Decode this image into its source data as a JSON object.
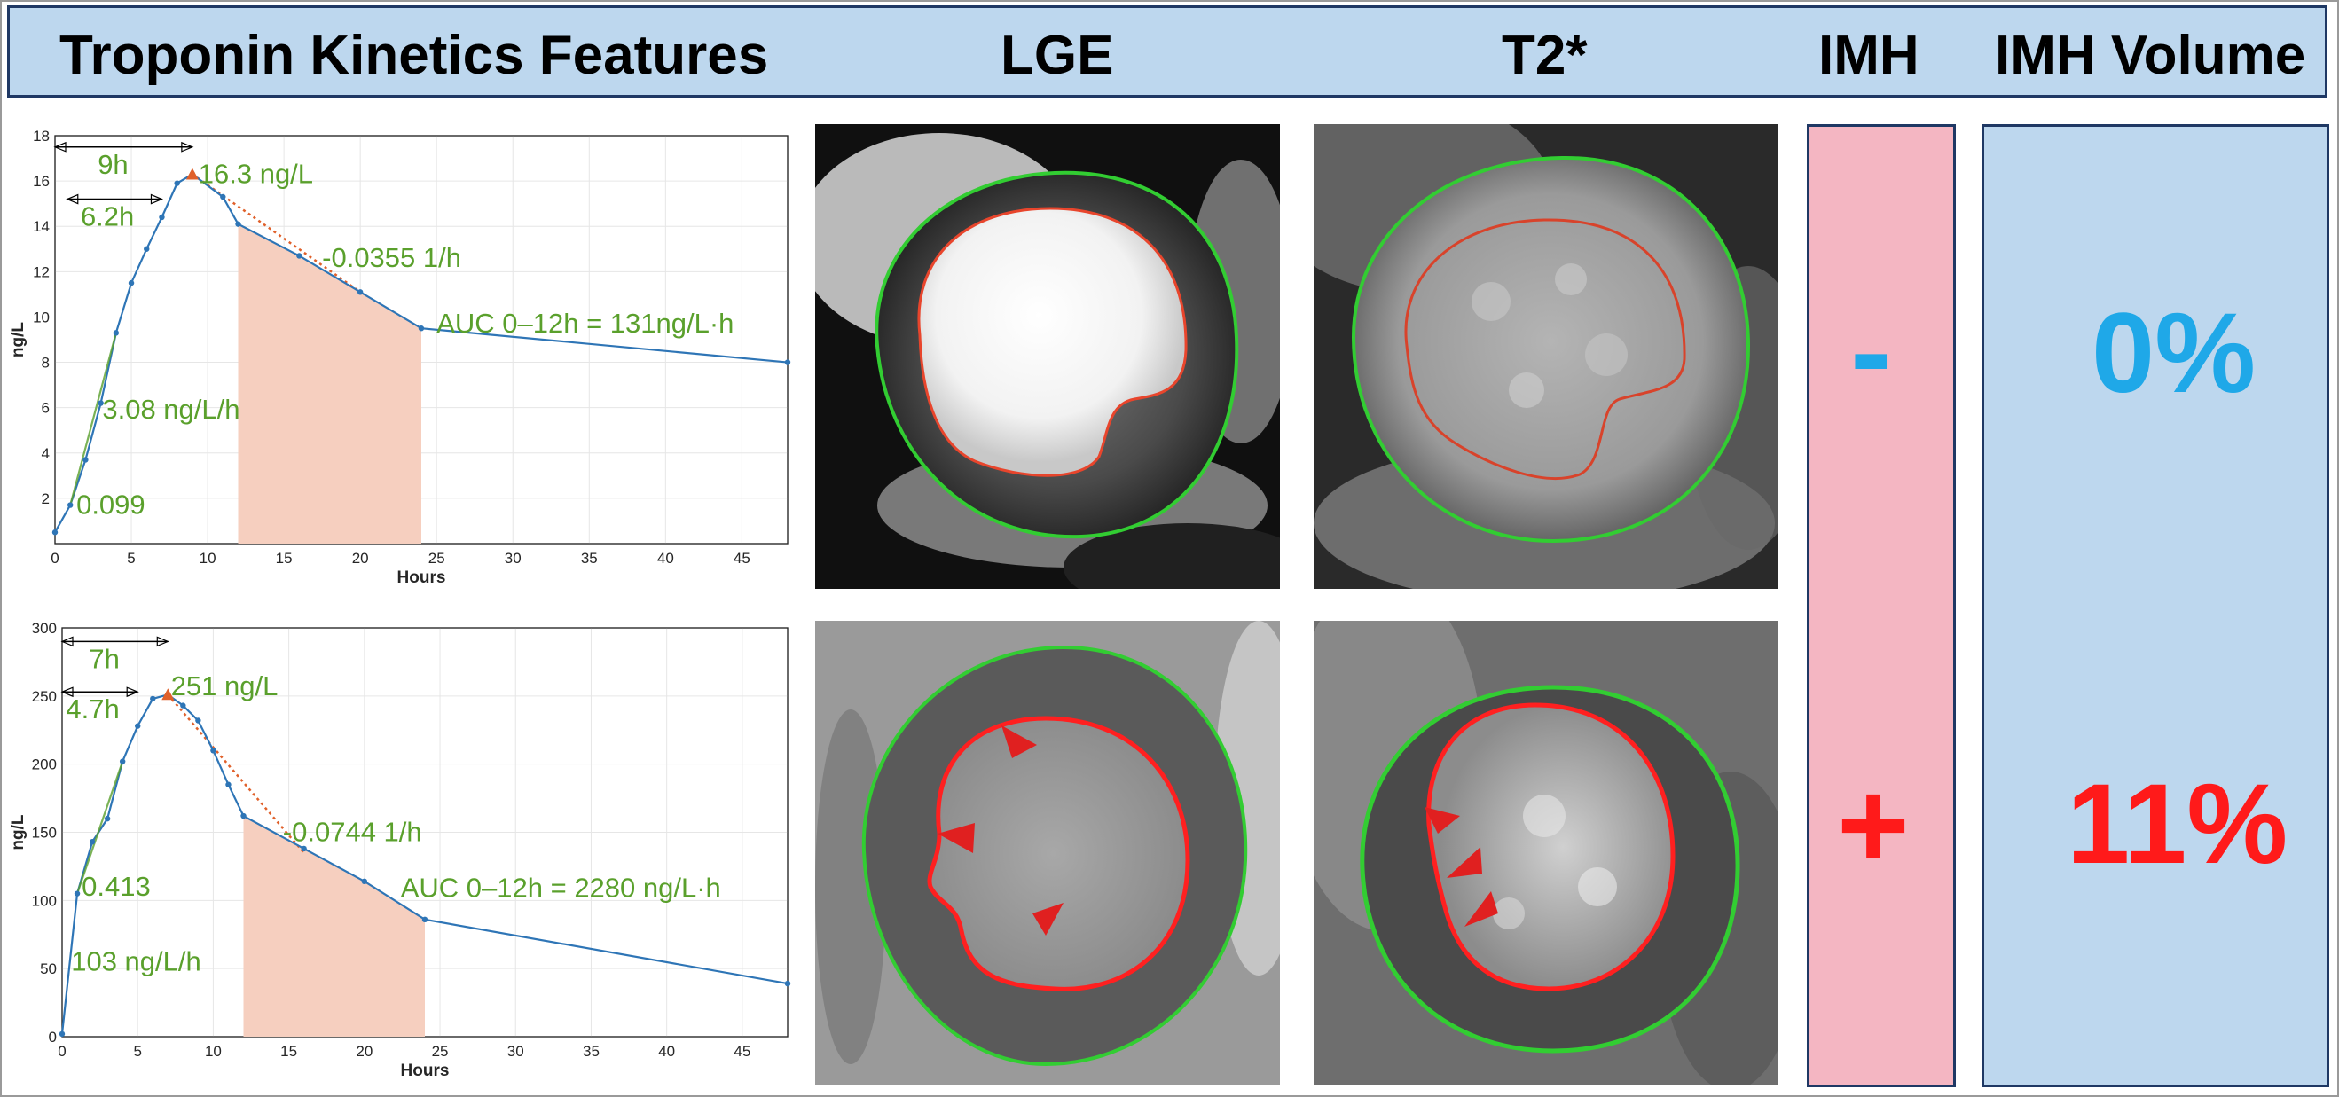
{
  "header": {
    "col1": "Troponin Kinetics Features",
    "col2": "LGE",
    "col3": "T2*",
    "col4": "IMH",
    "col5": "IMH Volume"
  },
  "colors": {
    "header_bg": "#bdd7ee",
    "header_border": "#1f3864",
    "series_line": "#2e75b6",
    "annotation_green": "#5aa02c",
    "auc_fill": "#f6cfbf",
    "decay_dotted": "#e0602a",
    "epi_contour": "#32cd32",
    "endo_contour_top": "#e8452c",
    "endo_contour_bottom": "#ff2020",
    "imh_box": "#f4b6c2",
    "volume_box": "#bdd7ee",
    "zero_text": "#1fa8e8",
    "eleven_text": "#ff1a1a"
  },
  "imh": {
    "negative": "-",
    "positive": "+"
  },
  "volume": {
    "top": "0%",
    "bottom": "11%"
  },
  "chart_data": [
    {
      "type": "line",
      "xlabel": "Hours",
      "ylabel": "ng/L",
      "xlim": [
        0,
        48
      ],
      "ylim": [
        0,
        18
      ],
      "xticks": [
        0,
        5,
        10,
        15,
        20,
        25,
        30,
        35,
        40,
        45
      ],
      "yticks": [
        2,
        4,
        6,
        8,
        10,
        12,
        14,
        16,
        18
      ],
      "grid": true,
      "series": [
        {
          "x": [
            0,
            1,
            2,
            3,
            4,
            5,
            6,
            7,
            8,
            9,
            11,
            12,
            16,
            20,
            24,
            48
          ],
          "y": [
            0.5,
            1.7,
            3.7,
            6.2,
            9.3,
            11.5,
            13.0,
            14.4,
            15.9,
            16.3,
            15.3,
            14.1,
            12.7,
            11.1,
            9.5,
            8.0
          ]
        }
      ],
      "auc_shade": [
        12,
        24
      ],
      "peak": {
        "x": 9,
        "y": 16.3
      },
      "decay_fit": {
        "x": [
          9,
          20
        ],
        "y": [
          16.3,
          11.1
        ]
      },
      "arrows": [
        {
          "from": 0,
          "to": 9,
          "y": 17.5,
          "label": "9h"
        },
        {
          "from": 0.8,
          "to": 7,
          "y": 15.2,
          "label": "6.2h"
        }
      ],
      "annotations": [
        {
          "text": "16.3 ng/L",
          "x": 9.4,
          "y": 16.3
        },
        {
          "text": "-0.0355 1/h",
          "x": 17.5,
          "y": 12.6
        },
        {
          "text": "AUC 0–12h = 131ng/L·h",
          "x": 25,
          "y": 9.7
        },
        {
          "text": "3.08 ng/L/h",
          "x": 3.1,
          "y": 5.9
        },
        {
          "text": "0.099",
          "x": 1.4,
          "y": 1.7
        }
      ]
    },
    {
      "type": "line",
      "xlabel": "Hours",
      "ylabel": "ng/L",
      "xlim": [
        0,
        48
      ],
      "ylim": [
        0,
        300
      ],
      "xticks": [
        0,
        5,
        10,
        15,
        20,
        25,
        30,
        35,
        40,
        45
      ],
      "yticks": [
        0,
        50,
        100,
        150,
        200,
        250,
        300
      ],
      "grid": true,
      "series": [
        {
          "x": [
            0,
            1,
            2,
            3,
            4,
            5,
            6,
            7,
            8,
            9,
            10,
            11,
            12,
            16,
            20,
            24,
            48
          ],
          "y": [
            2,
            105,
            143,
            160,
            202,
            228,
            248,
            251,
            243,
            232,
            210,
            185,
            162,
            138,
            114,
            86,
            39
          ]
        }
      ],
      "auc_shade": [
        12,
        24
      ],
      "peak": {
        "x": 7,
        "y": 251
      },
      "decay_fit": {
        "x": [
          7,
          16
        ],
        "y": [
          251,
          135
        ]
      },
      "arrows": [
        {
          "from": 0,
          "to": 7,
          "y": 290,
          "label": "7h"
        },
        {
          "from": 0,
          "to": 5,
          "y": 253,
          "label": "4.7h"
        }
      ],
      "annotations": [
        {
          "text": "251 ng/L",
          "x": 7.2,
          "y": 257
        },
        {
          "text": "-0.0744 1/h",
          "x": 14.6,
          "y": 150
        },
        {
          "text": "AUC 0–12h = 2280 ng/L·h",
          "x": 22.4,
          "y": 109
        },
        {
          "text": "0.413",
          "x": 1.3,
          "y": 110
        },
        {
          "text": "103 ng/L/h",
          "x": 0.6,
          "y": 55
        }
      ]
    }
  ]
}
